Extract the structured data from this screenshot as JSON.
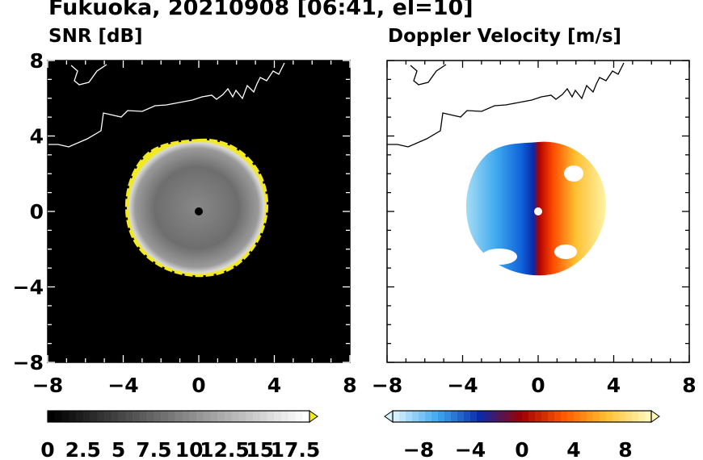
{
  "title": "Fukuoka, 20210908 [06:41, el=10]",
  "chart_data": [
    {
      "type": "heatmap",
      "title": "SNR [dB]",
      "xlim": [
        -8,
        8
      ],
      "ylim": [
        -8,
        8
      ],
      "x_ticks": [
        "−8",
        "−4",
        "0",
        "4",
        "8"
      ],
      "y_ticks": [
        "8",
        "4",
        "0",
        "−4",
        "−8"
      ],
      "background": "black",
      "echo_radius": 3.7,
      "echo_center": [
        0,
        0
      ],
      "colorbar": {
        "tick_labels": [
          "0",
          "2.5",
          "5",
          "7.5",
          "10",
          "12.5",
          "15",
          "17.5"
        ],
        "range": [
          0,
          18.5
        ],
        "colors": [
          "#000000",
          "#ffffff"
        ],
        "extend": "max",
        "extend_color": "#f2ea1e"
      }
    },
    {
      "type": "heatmap",
      "title": "Doppler Velocity [m/s]",
      "xlim": [
        -8,
        8
      ],
      "ylim": [
        -8,
        8
      ],
      "x_ticks": [
        "−8",
        "−4",
        "0",
        "4",
        "8"
      ],
      "y_ticks": [],
      "background": "white",
      "echo_radius": 3.7,
      "echo_center": [
        0,
        0
      ],
      "colorbar": {
        "tick_labels": [
          "−8",
          "−4",
          "0",
          "4",
          "8"
        ],
        "range": [
          -10,
          10
        ],
        "colors": [
          "#d6f0fb",
          "#3da8ee",
          "#0a2aa8",
          "#a00000",
          "#ff5a00",
          "#ffc030",
          "#fff7b8"
        ],
        "extend": "both"
      }
    }
  ]
}
